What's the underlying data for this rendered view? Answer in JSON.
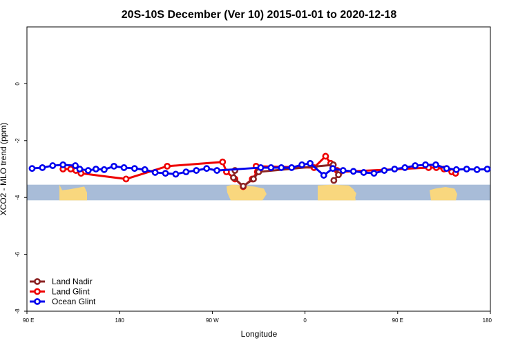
{
  "chart_data": {
    "type": "line",
    "title": "20S-10S December (Ver 10)   2015-01-01 to 2020-12-18",
    "xlabel": "Longitude",
    "ylabel": "XCO2 - MLO trend (ppm)",
    "xlim": [
      90,
      450
    ],
    "ylim": [
      -8,
      2
    ],
    "x_ticks": [
      90,
      162,
      234,
      306,
      378,
      450
    ],
    "x_tick_labels": [
      "90 E",
      "180",
      "90 W",
      "0",
      "90 E",
      "180"
    ],
    "y_ticks": [
      -8,
      -6,
      -4,
      -2,
      0
    ],
    "y_tick_labels": [
      "-8",
      "-6",
      "-4",
      "-2",
      "0"
    ],
    "legend_position": "bottom-left",
    "land_strip": {
      "y_range": [
        -4.1,
        -3.55
      ],
      "ocean_color": "#a8bcd8",
      "land_color": "#f9d77e"
    },
    "series": [
      {
        "name": "Land Nadir",
        "color": "#8b2323",
        "points": [
          [
            251.6,
            -3.05
          ],
          [
            250.4,
            -3.3
          ],
          [
            258,
            -3.6
          ],
          [
            266,
            -3.35
          ],
          [
            270,
            -3.1
          ],
          [
            328,
            -2.85
          ],
          [
            332,
            -3.2
          ],
          [
            328.4,
            -3.4
          ]
        ]
      },
      {
        "name": "Land Glint",
        "color": "#ee0000",
        "points": [
          [
            118,
            -3.0
          ],
          [
            124,
            -3.0
          ],
          [
            128,
            -3.05
          ],
          [
            132,
            -3.15
          ],
          [
            167,
            -3.35
          ],
          [
            199,
            -2.9
          ],
          [
            242,
            -2.75
          ],
          [
            245,
            -3.1
          ],
          [
            251.6,
            -3.35
          ],
          [
            258,
            -3.62
          ],
          [
            265,
            -3.35
          ],
          [
            269,
            -3.1
          ],
          [
            268,
            -2.9
          ],
          [
            313,
            -2.95
          ],
          [
            322,
            -2.55
          ],
          [
            326,
            -2.8
          ],
          [
            331,
            -3.05
          ],
          [
            333.2,
            -3.1
          ],
          [
            402,
            -2.95
          ],
          [
            408,
            -2.95
          ],
          [
            414,
            -3.0
          ],
          [
            420,
            -3.1
          ],
          [
            423,
            -3.15
          ]
        ]
      },
      {
        "name": "Ocean Glint",
        "color": "#0000ee",
        "points": [
          [
            94,
            -2.98
          ],
          [
            102,
            -2.95
          ],
          [
            110,
            -2.88
          ],
          [
            118,
            -2.85
          ],
          [
            127.6,
            -2.88
          ],
          [
            131,
            -3.0
          ],
          [
            137.6,
            -3.05
          ],
          [
            143.6,
            -3.0
          ],
          [
            150,
            -3.02
          ],
          [
            157.6,
            -2.9
          ],
          [
            165.4,
            -2.95
          ],
          [
            173.6,
            -2.98
          ],
          [
            181.6,
            -3.02
          ],
          [
            189.6,
            -3.12
          ],
          [
            197.6,
            -3.15
          ],
          [
            205.6,
            -3.18
          ],
          [
            213.6,
            -3.1
          ],
          [
            221.6,
            -3.05
          ],
          [
            229.6,
            -2.98
          ],
          [
            237.6,
            -3.05
          ],
          [
            271.6,
            -2.95
          ],
          [
            279.6,
            -2.95
          ],
          [
            287.6,
            -2.95
          ],
          [
            295.6,
            -2.95
          ],
          [
            303.6,
            -2.85
          ],
          [
            310,
            -2.8
          ],
          [
            320.6,
            -3.22
          ],
          [
            327.6,
            -2.98
          ],
          [
            335.6,
            -3.05
          ],
          [
            343.6,
            -3.08
          ],
          [
            351.6,
            -3.12
          ],
          [
            359.6,
            -3.15
          ],
          [
            367.6,
            -3.05
          ],
          [
            375.6,
            -3.0
          ],
          [
            383.6,
            -2.95
          ],
          [
            391.6,
            -2.88
          ],
          [
            399.6,
            -2.85
          ],
          [
            407.6,
            -2.85
          ],
          [
            416,
            -2.98
          ],
          [
            423.6,
            -3.02
          ],
          [
            431.6,
            -3.0
          ],
          [
            439.6,
            -3.02
          ],
          [
            447.6,
            -3.0
          ]
        ]
      }
    ]
  }
}
